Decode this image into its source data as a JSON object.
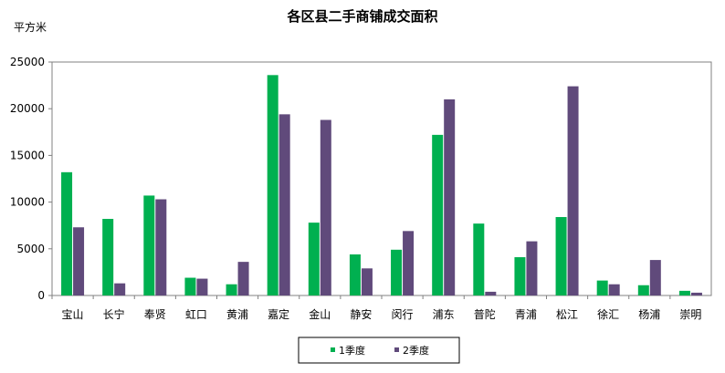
{
  "chart_data": {
    "type": "bar",
    "title": "各区县二手商铺成交面积",
    "ylabel": "平方米",
    "xlabel": "",
    "ylim": [
      0,
      25000
    ],
    "yticks": [
      0,
      5000,
      10000,
      15000,
      20000,
      25000
    ],
    "grid": false,
    "legend_position": "bottom",
    "categories": [
      "宝山",
      "长宁",
      "奉贤",
      "虹口",
      "黄浦",
      "嘉定",
      "金山",
      "静安",
      "闵行",
      "浦东",
      "普陀",
      "青浦",
      "松江",
      "徐汇",
      "杨浦",
      "崇明"
    ],
    "series": [
      {
        "name": "1季度",
        "color": "#00b050",
        "values": [
          13200,
          8200,
          10700,
          1900,
          1200,
          23600,
          7800,
          4400,
          4900,
          17200,
          7700,
          4100,
          8400,
          1600,
          1100,
          500
        ]
      },
      {
        "name": "2季度",
        "color": "#604a7b",
        "values": [
          7300,
          1300,
          10300,
          1800,
          3600,
          19400,
          18800,
          2900,
          6900,
          21000,
          400,
          5800,
          22400,
          1200,
          3800,
          300
        ]
      }
    ]
  }
}
